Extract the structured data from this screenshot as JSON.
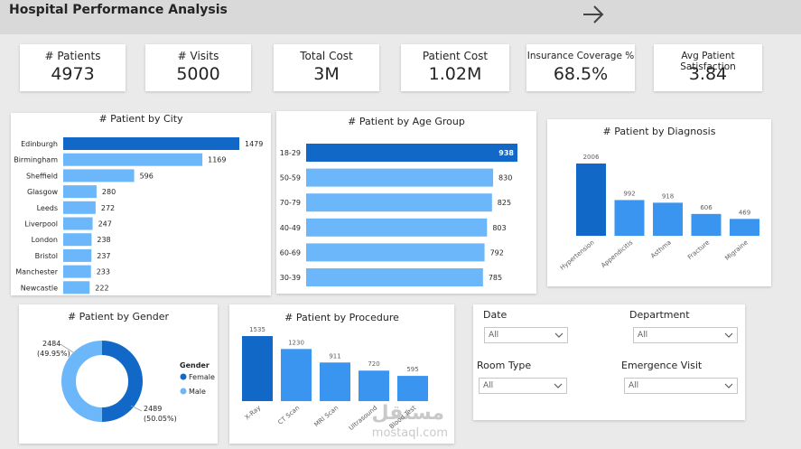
{
  "header": {
    "title": "Hospital Performance Analysis",
    "next_icon": "arrow-right-icon"
  },
  "kpis": [
    {
      "label": "# Patients",
      "value": "4973"
    },
    {
      "label": "# Visits",
      "value": "5000"
    },
    {
      "label": "Total Cost",
      "value": "3M"
    },
    {
      "label": "Patient Cost",
      "value": "1.02M"
    },
    {
      "label": "Insurance Coverage %",
      "value": "68.5%"
    },
    {
      "label": "Avg Patient Satisfaction",
      "value": "3.84"
    }
  ],
  "colors": {
    "dark_blue": "#1168c6",
    "mid_blue": "#3a95f0",
    "light_blue": "#6cb7fa",
    "text": "#252423"
  },
  "chart_data": [
    {
      "type": "bar",
      "orientation": "horizontal",
      "title": "# Patient by City",
      "categories": [
        "Edinburgh",
        "Birmingham",
        "Sheffield",
        "Glasgow",
        "Leeds",
        "Liverpool",
        "London",
        "Bristol",
        "Manchester",
        "Newcastle"
      ],
      "values": [
        1479,
        1169,
        596,
        280,
        272,
        247,
        238,
        237,
        233,
        222
      ]
    },
    {
      "type": "bar",
      "orientation": "horizontal",
      "title": "# Patient by Age Group",
      "categories": [
        "18-29",
        "50-59",
        "70-79",
        "40-49",
        "60-69",
        "30-39"
      ],
      "values": [
        938,
        830,
        825,
        803,
        792,
        785
      ]
    },
    {
      "type": "bar",
      "title": "# Patient by Diagnosis",
      "categories": [
        "Hypertension",
        "Appendicitis",
        "Asthma",
        "Fracture",
        "Migraine"
      ],
      "values": [
        2006,
        992,
        918,
        606,
        469
      ]
    },
    {
      "type": "pie",
      "variant": "donut",
      "title": "# Patient by Gender",
      "legend_title": "Gender",
      "categories": [
        "Female",
        "Male"
      ],
      "values": [
        2484,
        2489
      ],
      "labels": [
        "2484",
        "2489"
      ],
      "percent_labels": [
        "(49.95%)",
        "(50.05%)"
      ],
      "legend_position": "right"
    },
    {
      "type": "bar",
      "title": "# Patient by Procedure",
      "categories": [
        "X-Ray",
        "CT Scan",
        "MRI Scan",
        "Ultrasound",
        "Blood Test"
      ],
      "values": [
        1535,
        1230,
        911,
        720,
        595
      ]
    }
  ],
  "filters": {
    "date": {
      "label": "Date",
      "value": "All"
    },
    "department": {
      "label": "Department",
      "value": "All"
    },
    "room_type": {
      "label": "Room Type",
      "value": "All"
    },
    "emergence_visit": {
      "label": "Emergence Visit",
      "value": "All"
    }
  },
  "watermark": {
    "text_ar": "مستقل",
    "text_en": "mostaql.com"
  }
}
